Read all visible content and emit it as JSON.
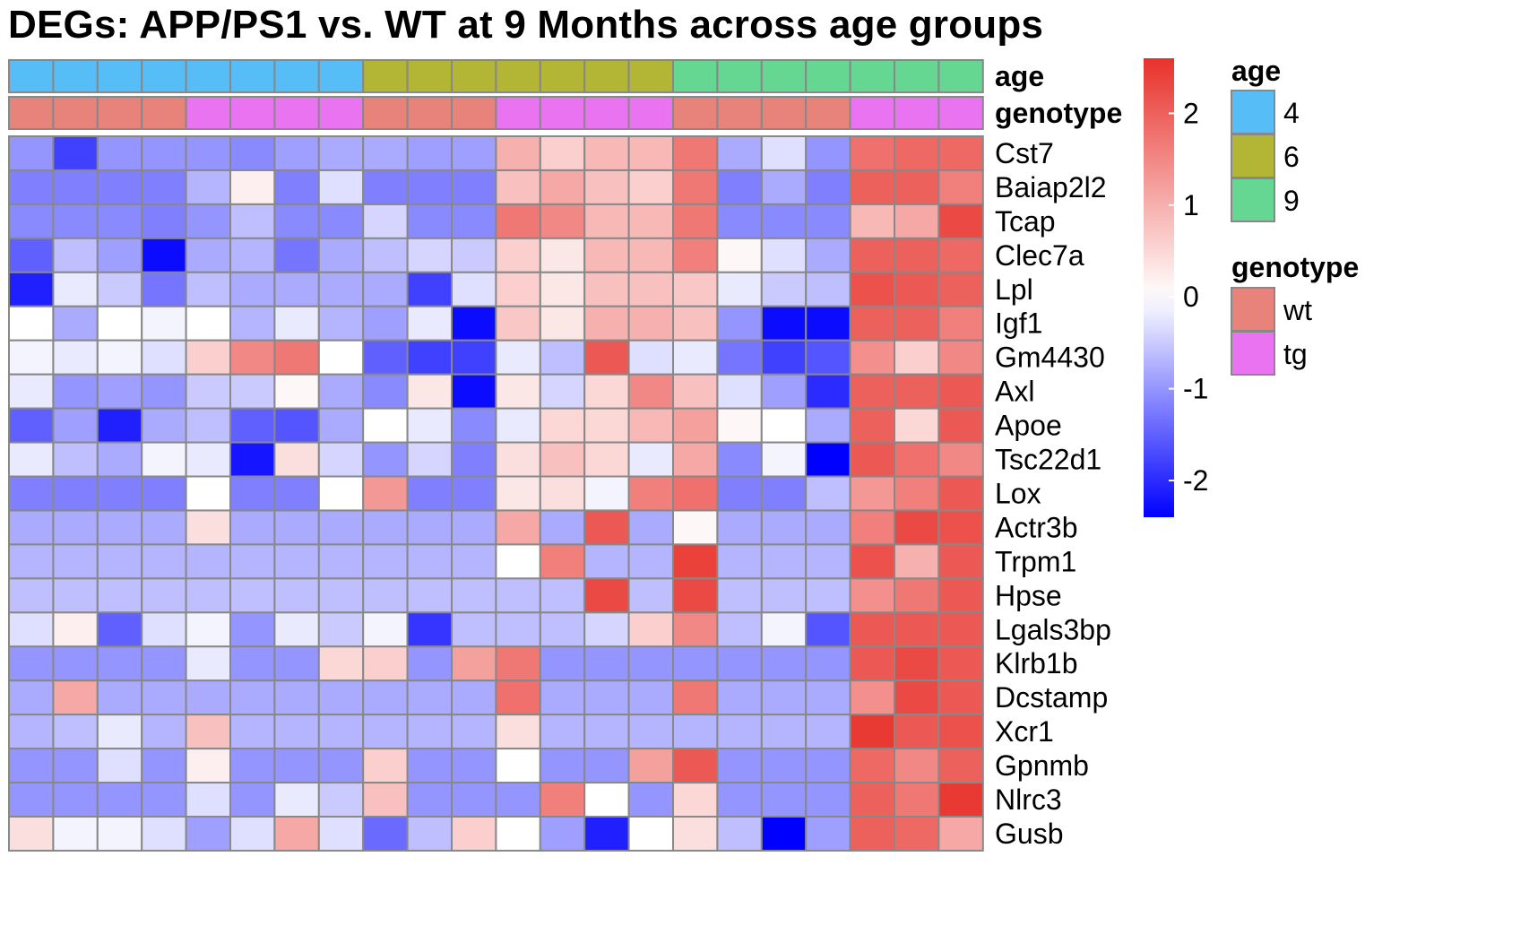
{
  "chart_data": {
    "type": "heatmap",
    "title": "DEGs: APP/PS1 vs. WT at 9 Months across age groups",
    "rows": [
      "Cst7",
      "Baiap2l2",
      "Tcap",
      "Clec7a",
      "Lpl",
      "Igf1",
      "Gm4430",
      "Axl",
      "Apoe",
      "Tsc22d1",
      "Lox",
      "Actr3b",
      "Trpm1",
      "Hpse",
      "Lgals3bp",
      "Klrb1b",
      "Dcstamp",
      "Xcr1",
      "Gpnmb",
      "Nlrc3",
      "Gusb"
    ],
    "n_columns": 22,
    "values": [
      [
        -1.0,
        -1.8,
        -1.0,
        -1.0,
        -1.0,
        -1.1,
        -0.9,
        -0.8,
        -0.8,
        -0.9,
        -0.9,
        1.0,
        0.6,
        0.9,
        0.9,
        1.7,
        -0.8,
        -0.3,
        -1.0,
        1.8,
        1.9,
        1.9
      ],
      [
        -1.2,
        -1.2,
        -1.2,
        -1.2,
        -0.7,
        0.2,
        -1.2,
        -0.3,
        -1.2,
        -1.2,
        -1.2,
        0.8,
        1.1,
        0.8,
        0.6,
        1.7,
        -1.2,
        -0.8,
        -1.2,
        2.0,
        2.0,
        1.6
      ],
      [
        -1.1,
        -1.1,
        -1.1,
        -1.2,
        -1.0,
        -0.6,
        -1.1,
        -1.1,
        -0.4,
        -1.1,
        -1.1,
        1.7,
        1.5,
        0.9,
        0.9,
        1.7,
        -1.1,
        -1.1,
        -1.1,
        0.9,
        1.1,
        2.3
      ],
      [
        -1.5,
        -0.6,
        -0.9,
        -2.3,
        -0.8,
        -0.7,
        -1.3,
        -0.8,
        -0.6,
        -0.4,
        -0.5,
        0.6,
        0.3,
        0.9,
        0.9,
        1.6,
        0.1,
        -0.3,
        -0.8,
        2.0,
        2.0,
        1.9
      ],
      [
        -2.1,
        -0.2,
        -0.5,
        -1.3,
        -0.6,
        -0.8,
        -0.8,
        -0.8,
        -0.8,
        -1.8,
        -0.3,
        0.6,
        0.3,
        0.8,
        0.8,
        0.7,
        -0.2,
        -0.5,
        -0.6,
        2.2,
        2.1,
        2.0
      ],
      [
        0.0,
        -0.8,
        0.0,
        -0.1,
        0.0,
        -0.7,
        -0.2,
        -0.7,
        -0.9,
        -0.2,
        -2.3,
        0.7,
        0.3,
        1.0,
        1.0,
        0.8,
        -1.0,
        -2.3,
        -2.3,
        2.0,
        2.0,
        1.6
      ],
      [
        -0.1,
        -0.2,
        -0.1,
        -0.3,
        0.6,
        1.5,
        1.7,
        0.0,
        -1.5,
        -1.8,
        -1.8,
        -0.2,
        -0.6,
        2.1,
        -0.3,
        -0.2,
        -1.3,
        -1.8,
        -1.6,
        1.4,
        0.6,
        1.5
      ],
      [
        -0.2,
        -1.0,
        -0.9,
        -1.0,
        -0.5,
        -0.5,
        0.1,
        -0.8,
        -1.1,
        0.3,
        -2.3,
        0.3,
        -0.4,
        0.5,
        1.5,
        0.8,
        -0.3,
        -0.9,
        -2.0,
        2.0,
        2.0,
        2.1
      ],
      [
        -1.5,
        -0.9,
        -2.1,
        -0.8,
        -0.6,
        -1.5,
        -1.6,
        -0.8,
        0.0,
        -0.2,
        -1.1,
        -0.2,
        0.5,
        0.5,
        0.9,
        1.2,
        0.1,
        0.0,
        -0.8,
        2.0,
        0.5,
        2.1
      ],
      [
        -0.2,
        -0.6,
        -0.8,
        -0.1,
        -0.2,
        -2.2,
        0.4,
        -0.4,
        -1.0,
        -0.4,
        -1.2,
        0.4,
        0.8,
        0.5,
        -0.2,
        1.1,
        -1.1,
        -0.1,
        -2.4,
        2.1,
        1.8,
        1.5
      ],
      [
        -1.2,
        -1.2,
        -1.2,
        -1.2,
        0.0,
        -1.2,
        -1.2,
        0.0,
        1.3,
        -1.2,
        -1.2,
        0.3,
        0.4,
        -0.1,
        1.6,
        1.8,
        -1.2,
        -1.2,
        -0.6,
        1.3,
        1.6,
        2.1
      ],
      [
        -0.8,
        -0.8,
        -0.8,
        -0.8,
        0.4,
        -0.8,
        -0.8,
        -0.8,
        -0.8,
        -0.8,
        -0.8,
        1.1,
        -0.8,
        2.1,
        -0.8,
        0.1,
        -0.8,
        -0.8,
        -0.8,
        1.6,
        2.3,
        2.2
      ],
      [
        -0.7,
        -0.7,
        -0.7,
        -0.7,
        -0.7,
        -0.7,
        -0.7,
        -0.7,
        -0.7,
        -0.7,
        -0.7,
        0.0,
        1.6,
        -0.7,
        -0.7,
        2.4,
        -0.7,
        -0.7,
        -0.7,
        2.2,
        1.0,
        2.1
      ],
      [
        -0.6,
        -0.6,
        -0.6,
        -0.6,
        -0.6,
        -0.6,
        -0.6,
        -0.6,
        -0.6,
        -0.6,
        -0.6,
        -0.6,
        -0.6,
        2.3,
        -0.6,
        2.3,
        -0.6,
        -0.6,
        -0.6,
        1.4,
        1.7,
        2.1
      ],
      [
        -0.3,
        0.2,
        -1.5,
        -0.3,
        -0.1,
        -1.0,
        -0.2,
        -0.5,
        -0.1,
        -1.9,
        -0.6,
        -0.6,
        -0.6,
        -0.4,
        0.6,
        1.5,
        -0.6,
        -0.1,
        -1.6,
        2.1,
        2.1,
        2.1
      ],
      [
        -1.0,
        -1.0,
        -1.0,
        -1.0,
        -0.2,
        -1.0,
        -1.0,
        0.5,
        0.6,
        -1.0,
        1.2,
        1.7,
        -1.0,
        -1.0,
        -1.0,
        -1.0,
        -1.0,
        -1.0,
        -1.0,
        2.1,
        2.3,
        2.1
      ],
      [
        -0.8,
        1.1,
        -0.8,
        -0.8,
        -0.8,
        -0.8,
        -0.8,
        -0.8,
        -0.8,
        -0.8,
        -0.8,
        1.8,
        -0.8,
        -0.8,
        -0.8,
        1.7,
        -0.8,
        -0.8,
        -0.8,
        1.4,
        2.3,
        2.1
      ],
      [
        -0.7,
        -0.6,
        -0.2,
        -0.7,
        0.8,
        -0.7,
        -0.7,
        -0.7,
        -0.7,
        -0.7,
        -0.7,
        0.4,
        -0.7,
        -0.7,
        -0.7,
        -0.7,
        -0.7,
        -0.7,
        -0.7,
        2.5,
        2.1,
        2.2
      ],
      [
        -1.0,
        -1.0,
        -0.3,
        -1.0,
        0.2,
        -1.0,
        -1.0,
        -1.0,
        0.6,
        -1.0,
        -1.0,
        0.0,
        -1.0,
        -1.0,
        1.2,
        2.1,
        -1.0,
        -1.0,
        -1.0,
        1.9,
        1.5,
        2.0
      ],
      [
        -1.0,
        -1.0,
        -1.0,
        -1.0,
        -0.3,
        -1.0,
        -0.2,
        -0.5,
        0.8,
        -1.0,
        -1.0,
        -1.0,
        1.6,
        0.0,
        -1.0,
        0.5,
        -1.0,
        -1.0,
        -1.0,
        2.0,
        1.7,
        2.5
      ],
      [
        0.4,
        -0.1,
        -0.1,
        -0.3,
        -0.9,
        -0.3,
        1.1,
        -0.3,
        -1.4,
        -0.6,
        0.6,
        0.0,
        -0.9,
        -2.1,
        0.0,
        0.4,
        -0.6,
        -2.4,
        -0.9,
        2.0,
        1.9,
        1.1
      ]
    ],
    "annotations": {
      "age": [
        4,
        4,
        4,
        4,
        4,
        4,
        4,
        4,
        6,
        6,
        6,
        6,
        6,
        6,
        6,
        9,
        9,
        9,
        9,
        9,
        9,
        9
      ],
      "genotype": [
        "wt",
        "wt",
        "wt",
        "wt",
        "tg",
        "tg",
        "tg",
        "tg",
        "wt",
        "wt",
        "wt",
        "tg",
        "tg",
        "tg",
        "tg",
        "wt",
        "wt",
        "wt",
        "wt",
        "tg",
        "tg",
        "tg"
      ]
    },
    "annotation_labels": [
      "age",
      "genotype"
    ],
    "colorbar": {
      "ticks": [
        2,
        1,
        0,
        -1,
        -2
      ],
      "range": [
        -2.4,
        2.6
      ],
      "low": "#0000ff",
      "mid": "#ffffff",
      "high": "#e8312b"
    },
    "legend": {
      "age": {
        "title": "age",
        "items": [
          {
            "label": "4",
            "color": "#56bdf7"
          },
          {
            "label": "6",
            "color": "#b3b535"
          },
          {
            "label": "9",
            "color": "#66d693"
          }
        ]
      },
      "genotype": {
        "title": "genotype",
        "items": [
          {
            "label": "wt",
            "color": "#e8837b"
          },
          {
            "label": "tg",
            "color": "#ea73f1"
          }
        ]
      }
    }
  },
  "colors": {
    "border": "#888888"
  }
}
